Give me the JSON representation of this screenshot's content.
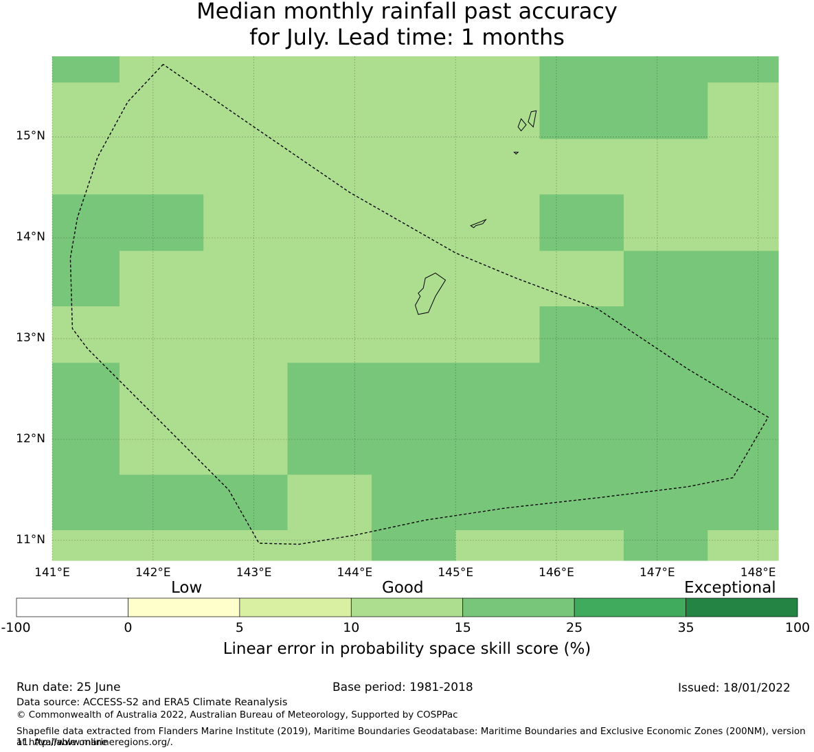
{
  "title": {
    "line1": "Median monthly rainfall past accuracy",
    "line2": "for July. Lead time: 1 months"
  },
  "map": {
    "lon_range": [
      141.0,
      148.2
    ],
    "lat_range": [
      10.8,
      15.8
    ],
    "lon_ticks": [
      "141°E",
      "142°E",
      "143°E",
      "144°E",
      "145°E",
      "146°E",
      "147°E",
      "148°E"
    ],
    "lon_values": [
      141,
      142,
      143,
      144,
      145,
      146,
      147,
      148
    ],
    "lat_ticks": [
      "11°N",
      "12°N",
      "13°N",
      "14°N",
      "15°N"
    ],
    "lat_values": [
      11,
      12,
      13,
      14,
      15
    ],
    "grid_lines": true,
    "grid_lon_edges": [
      141.0,
      141.667,
      142.5,
      143.333,
      144.167,
      145.0,
      145.833,
      146.667,
      147.5,
      148.2
    ],
    "grid_lat_edges": [
      10.8,
      11.1,
      11.65,
      12.76,
      13.32,
      13.87,
      14.43,
      14.98,
      15.54,
      15.8
    ],
    "cells_top_to_bottom": [
      [
        4,
        3,
        3,
        3,
        3,
        3,
        4,
        4,
        4
      ],
      [
        3,
        3,
        3,
        3,
        3,
        3,
        4,
        4,
        3
      ],
      [
        3,
        3,
        3,
        3,
        3,
        3,
        3,
        3,
        3
      ],
      [
        4,
        4,
        3,
        3,
        3,
        3,
        4,
        3,
        3
      ],
      [
        4,
        3,
        3,
        3,
        3,
        3,
        3,
        4,
        4
      ],
      [
        3,
        3,
        3,
        3,
        3,
        3,
        4,
        4,
        4
      ],
      [
        4,
        3,
        3,
        4,
        4,
        4,
        4,
        4,
        4
      ],
      [
        4,
        4,
        4,
        3,
        4,
        4,
        4,
        4,
        4
      ],
      [
        3,
        3,
        3,
        3,
        4,
        3,
        3,
        4,
        3
      ]
    ],
    "boundary_lonlat": [
      [
        142.1,
        15.72
      ],
      [
        141.75,
        15.35
      ],
      [
        141.45,
        14.8
      ],
      [
        141.25,
        14.2
      ],
      [
        141.18,
        13.8
      ],
      [
        141.2,
        13.1
      ],
      [
        141.35,
        12.9
      ],
      [
        141.7,
        12.55
      ],
      [
        142.2,
        12.05
      ],
      [
        142.75,
        11.5
      ],
      [
        143.05,
        10.97
      ],
      [
        143.45,
        10.96
      ],
      [
        144.0,
        11.05
      ],
      [
        144.7,
        11.2
      ],
      [
        145.5,
        11.32
      ],
      [
        146.4,
        11.42
      ],
      [
        147.3,
        11.53
      ],
      [
        147.75,
        11.62
      ],
      [
        148.1,
        12.22
      ],
      [
        147.3,
        12.7
      ],
      [
        146.4,
        13.3
      ],
      [
        145.6,
        13.6
      ],
      [
        145.0,
        13.85
      ],
      [
        143.95,
        14.45
      ],
      [
        143.0,
        15.1
      ],
      [
        142.1,
        15.72
      ]
    ],
    "islands_lonlat": [
      [
        [
          144.7,
          13.6
        ],
        [
          144.8,
          13.65
        ],
        [
          144.9,
          13.58
        ],
        [
          144.8,
          13.42
        ],
        [
          144.73,
          13.26
        ],
        [
          144.63,
          13.24
        ],
        [
          144.6,
          13.33
        ],
        [
          144.65,
          13.42
        ],
        [
          144.63,
          13.45
        ],
        [
          144.68,
          13.5
        ],
        [
          144.7,
          13.6
        ]
      ],
      [
        [
          145.15,
          14.12
        ],
        [
          145.25,
          14.16
        ],
        [
          145.3,
          14.18
        ],
        [
          145.27,
          14.14
        ],
        [
          145.2,
          14.12
        ],
        [
          145.18,
          14.1
        ],
        [
          145.15,
          14.12
        ]
      ],
      [
        [
          145.65,
          15.18
        ],
        [
          145.7,
          15.12
        ],
        [
          145.65,
          15.06
        ],
        [
          145.62,
          15.1
        ],
        [
          145.65,
          15.18
        ]
      ],
      [
        [
          145.8,
          15.26
        ],
        [
          145.75,
          15.25
        ],
        [
          145.72,
          15.15
        ],
        [
          145.77,
          15.1
        ],
        [
          145.8,
          15.26
        ]
      ],
      [
        [
          145.58,
          14.85
        ],
        [
          145.62,
          14.85
        ],
        [
          145.6,
          14.83
        ],
        [
          145.58,
          14.85
        ]
      ]
    ]
  },
  "colorbar": {
    "category_labels": [
      "Low",
      "Good",
      "Exceptional"
    ],
    "tick_labels": [
      "-100",
      "0",
      "5",
      "10",
      "15",
      "25",
      "35",
      "100"
    ],
    "colors": [
      "#ffffff",
      "#ffffcc",
      "#d9f0a3",
      "#addd8e",
      "#78c679",
      "#41ab5d",
      "#238443"
    ],
    "title": "Linear error in probability space skill score (%)"
  },
  "footer": {
    "run_date": "Run date: 25 June",
    "base_period": "Base period: 1981-2018",
    "issued": "Issued: 18/01/2022",
    "data_source": "Data source: ACCESS-S2 and ERA5 Climate Reanalysis",
    "copyright": "© Commonwealth of Australia 2022, Australian Bureau of Meteorology, Supported by COSPPac",
    "shapefile_line1": "Shapefile data extracted from Flanders Marine Institute (2019), Maritime Boundaries Geodatabase: Maritime Boundaries and Exclusive Economic Zones (200NM), version 11. Available online",
    "shapefile_line2": "at http://www.marineregions.org/."
  }
}
